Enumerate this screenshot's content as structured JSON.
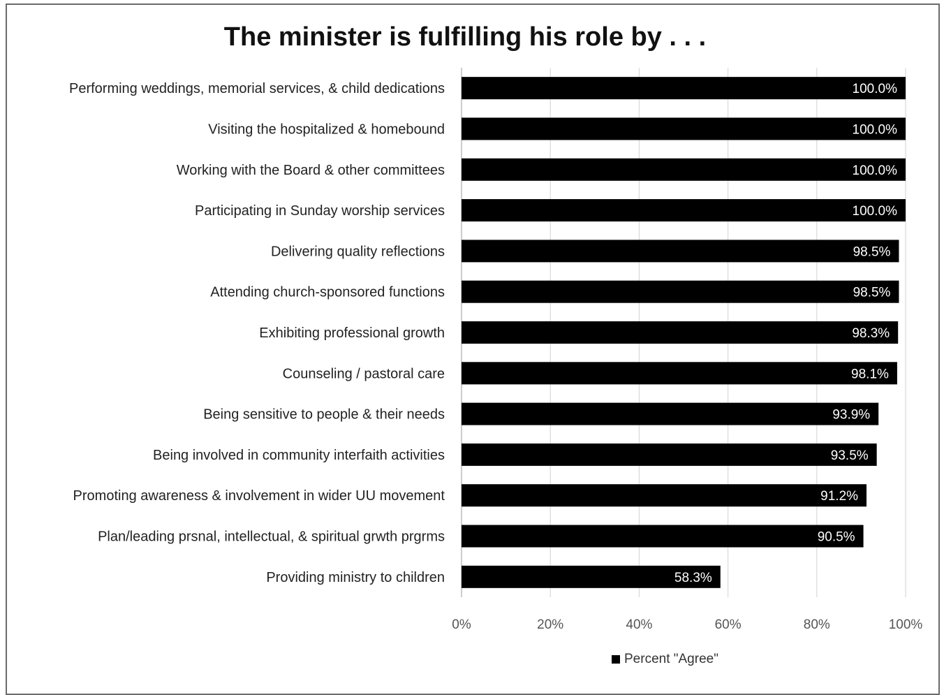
{
  "chart_data": {
    "type": "bar",
    "orientation": "horizontal",
    "title": "The minister is fulfilling his role by . . .",
    "categories": [
      "Performing weddings, memorial services, & child dedications",
      "Visiting the hospitalized & homebound",
      "Working with the Board & other committees",
      "Participating in Sunday worship services",
      "Delivering quality reflections",
      "Attending church-sponsored functions",
      "Exhibiting professional growth",
      "Counseling / pastoral care",
      "Being sensitive to people & their needs",
      "Being involved in community interfaith activities",
      "Promoting awareness & involvement in wider UU movement",
      "Plan/leading prsnal, intellectual, & spiritual grwth prgrms",
      "Providing ministry to children"
    ],
    "series": [
      {
        "name": "Percent \"Agree\"",
        "color": "#000000",
        "values": [
          100.0,
          100.0,
          100.0,
          100.0,
          98.5,
          98.5,
          98.3,
          98.1,
          93.9,
          93.5,
          91.2,
          90.5,
          58.3
        ],
        "data_labels": [
          "100.0%",
          "100.0%",
          "100.0%",
          "100.0%",
          "98.5%",
          "98.5%",
          "98.3%",
          "98.1%",
          "93.9%",
          "93.5%",
          "91.2%",
          "90.5%",
          "58.3%"
        ]
      }
    ],
    "x_ticks": [
      "0%",
      "20%",
      "40%",
      "60%",
      "80%",
      "100%"
    ],
    "xlim": [
      0,
      100
    ],
    "grid": true,
    "legend": "bottom"
  }
}
